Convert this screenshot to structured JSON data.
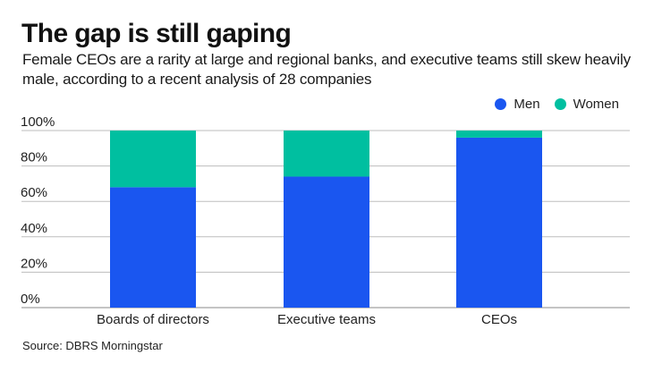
{
  "header": {
    "title": "The gap is still gaping",
    "subtitle": "Female CEOs are a rarity at large and regional banks, and executive teams still skew heavily male, according to a recent analysis of 28 companies"
  },
  "source": "Source: DBRS Morningstar",
  "chart_data": {
    "type": "bar",
    "stacked": true,
    "title": "The gap is still gaping",
    "subtitle": "Female CEOs are a rarity at large and regional banks, and executive teams still skew heavily male, according to a recent analysis of 28 companies",
    "xlabel": "",
    "ylabel": "",
    "categories": [
      "Boards of directors",
      "Executive teams",
      "CEOs"
    ],
    "series": [
      {
        "name": "Men",
        "color": "#1a56f0",
        "values": [
          68,
          74,
          96
        ]
      },
      {
        "name": "Women",
        "color": "#00bfa0",
        "values": [
          32,
          26,
          4
        ]
      }
    ],
    "ylim": [
      0,
      100
    ],
    "yticks": [
      0,
      20,
      40,
      60,
      80,
      100
    ],
    "ytick_labels": [
      "0%",
      "20%",
      "40%",
      "60%",
      "80%",
      "100%"
    ],
    "grid": true,
    "legend_position": "top-right",
    "source": "Source: DBRS Morningstar"
  }
}
